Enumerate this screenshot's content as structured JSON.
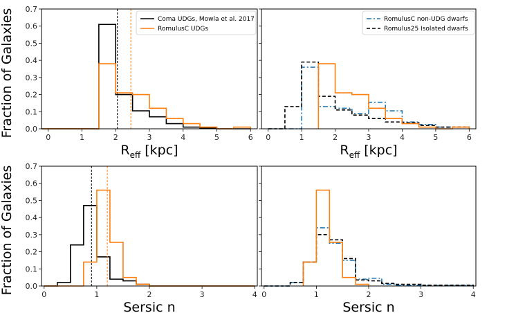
{
  "chart_data": [
    {
      "type": "histogram",
      "panel": "top-left",
      "xlabel": "R",
      "xlabel_sub": "eff",
      "xlabel_unit": "[kpc]",
      "ylabel": "Fraction of Galaxies",
      "xlim": [
        -0.2,
        6.2
      ],
      "ylim": [
        0,
        0.7
      ],
      "xticks": [
        0,
        1,
        2,
        3,
        4,
        5,
        6
      ],
      "yticks": [
        0.0,
        0.1,
        0.2,
        0.3,
        0.4,
        0.5,
        0.6,
        0.7
      ],
      "legend_position": "top-right",
      "series": [
        {
          "name": "Coma UDGs, Mowla et al. 2017",
          "color": "#000000",
          "dash": "solid",
          "bins": [
            -0.2,
            1.5,
            2.0,
            2.5,
            3.0,
            3.5,
            4.0,
            4.5,
            5.0,
            6.0
          ],
          "values": [
            0.0,
            0.61,
            0.2,
            0.105,
            0.07,
            0.03,
            0.01,
            0.005,
            0.0
          ],
          "median": 2.05
        },
        {
          "name": "RomulusC UDGs",
          "color": "#ff7f0e",
          "dash": "solid",
          "bins": [
            -0.2,
            1.5,
            2.0,
            2.5,
            3.0,
            3.5,
            4.0,
            4.5,
            5.0,
            5.5,
            6.0
          ],
          "values": [
            0.0,
            0.38,
            0.21,
            0.2,
            0.12,
            0.06,
            0.03,
            0.01,
            0.0,
            0.01
          ],
          "median": 2.45
        }
      ]
    },
    {
      "type": "histogram",
      "panel": "top-right",
      "xlabel": "R",
      "xlabel_sub": "eff",
      "xlabel_unit": "[kpc]",
      "xlim": [
        -0.2,
        6.2
      ],
      "ylim": [
        0,
        0.7
      ],
      "xticks": [
        0,
        1,
        2,
        3,
        4,
        5,
        6
      ],
      "legend_position": "top-right",
      "series": [
        {
          "name": "RomulusC non-UDG dwarfs",
          "color": "#1f77b4",
          "dash": "dashdot",
          "bins": [
            0.0,
            0.5,
            1.0,
            1.5,
            2.0,
            2.5,
            3.0,
            3.5,
            4.0,
            4.5,
            5.0,
            5.5,
            6.0
          ],
          "values": [
            0.0,
            0.0,
            0.36,
            0.13,
            0.12,
            0.09,
            0.155,
            0.105,
            0.04,
            0.025,
            0.01,
            0.01
          ]
        },
        {
          "name": "Romulus25 Isolated dwarfs",
          "color": "#000000",
          "dash": "dashed",
          "bins": [
            0.0,
            0.5,
            1.0,
            1.5,
            2.0,
            2.5,
            3.0,
            3.5,
            4.0,
            4.5,
            5.0,
            5.5,
            6.0
          ],
          "values": [
            0.0,
            0.13,
            0.39,
            0.19,
            0.11,
            0.08,
            0.06,
            0.04,
            0.035,
            0.02,
            0.01,
            0.01
          ]
        },
        {
          "name": "RomulusC UDGs",
          "color": "#ff7f0e",
          "dash": "solid",
          "bins": [
            1.5,
            2.0,
            2.5,
            3.0,
            3.5,
            4.0,
            4.5,
            5.0,
            5.5,
            6.0
          ],
          "values": [
            0.38,
            0.21,
            0.2,
            0.12,
            0.06,
            0.03,
            0.01,
            0.0,
            0.01
          ]
        }
      ]
    },
    {
      "type": "histogram",
      "panel": "bottom-left",
      "xlabel": "Sersic n",
      "ylabel": "Fraction of Galaxies",
      "xlim": [
        -0.05,
        4.05
      ],
      "ylim": [
        0,
        0.7
      ],
      "xticks": [
        0,
        1,
        2,
        3,
        4
      ],
      "yticks": [
        0.0,
        0.1,
        0.2,
        0.3,
        0.4,
        0.5,
        0.6,
        0.7
      ],
      "series": [
        {
          "name": "Coma UDGs, Mowla et al. 2017",
          "color": "#000000",
          "dash": "solid",
          "bins": [
            0.0,
            0.25,
            0.5,
            0.75,
            1.0,
            1.25,
            1.5,
            1.75,
            2.0,
            4.0
          ],
          "values": [
            0.0,
            0.02,
            0.24,
            0.47,
            0.17,
            0.04,
            0.03,
            0.01,
            0.0
          ],
          "median": 0.9
        },
        {
          "name": "RomulusC UDGs",
          "color": "#ff7f0e",
          "dash": "solid",
          "bins": [
            0.0,
            0.75,
            1.0,
            1.25,
            1.5,
            1.75,
            2.0,
            4.0
          ],
          "values": [
            0.0,
            0.14,
            0.56,
            0.255,
            0.05,
            0.01,
            0.0
          ],
          "median": 1.2
        }
      ]
    },
    {
      "type": "histogram",
      "panel": "bottom-right",
      "xlabel": "Sersic n",
      "xlim": [
        -0.05,
        4.05
      ],
      "ylim": [
        0,
        0.7
      ],
      "xticks": [
        0,
        1,
        2,
        3,
        4
      ],
      "series": [
        {
          "name": "RomulusC non-UDG dwarfs",
          "color": "#1f77b4",
          "dash": "dashdot",
          "bins": [
            0.0,
            0.5,
            0.75,
            1.0,
            1.25,
            1.5,
            1.75,
            2.0,
            2.25,
            2.5,
            3.0,
            4.0
          ],
          "values": [
            0.0,
            0.02,
            0.14,
            0.34,
            0.25,
            0.15,
            0.04,
            0.045,
            0.01,
            0.005,
            0.003
          ]
        },
        {
          "name": "Romulus25 Isolated dwarfs",
          "color": "#000000",
          "dash": "dashed",
          "bins": [
            0.0,
            0.5,
            0.75,
            1.0,
            1.25,
            1.5,
            1.75,
            2.0,
            2.25,
            2.5,
            3.0,
            4.0
          ],
          "values": [
            0.0,
            0.02,
            0.14,
            0.3,
            0.27,
            0.16,
            0.035,
            0.03,
            0.015,
            0.01,
            0.005
          ]
        },
        {
          "name": "RomulusC UDGs",
          "color": "#ff7f0e",
          "dash": "solid",
          "bins": [
            0.75,
            1.0,
            1.25,
            1.5,
            1.75,
            2.0
          ],
          "values": [
            0.14,
            0.56,
            0.255,
            0.05,
            0.01
          ]
        }
      ]
    }
  ]
}
